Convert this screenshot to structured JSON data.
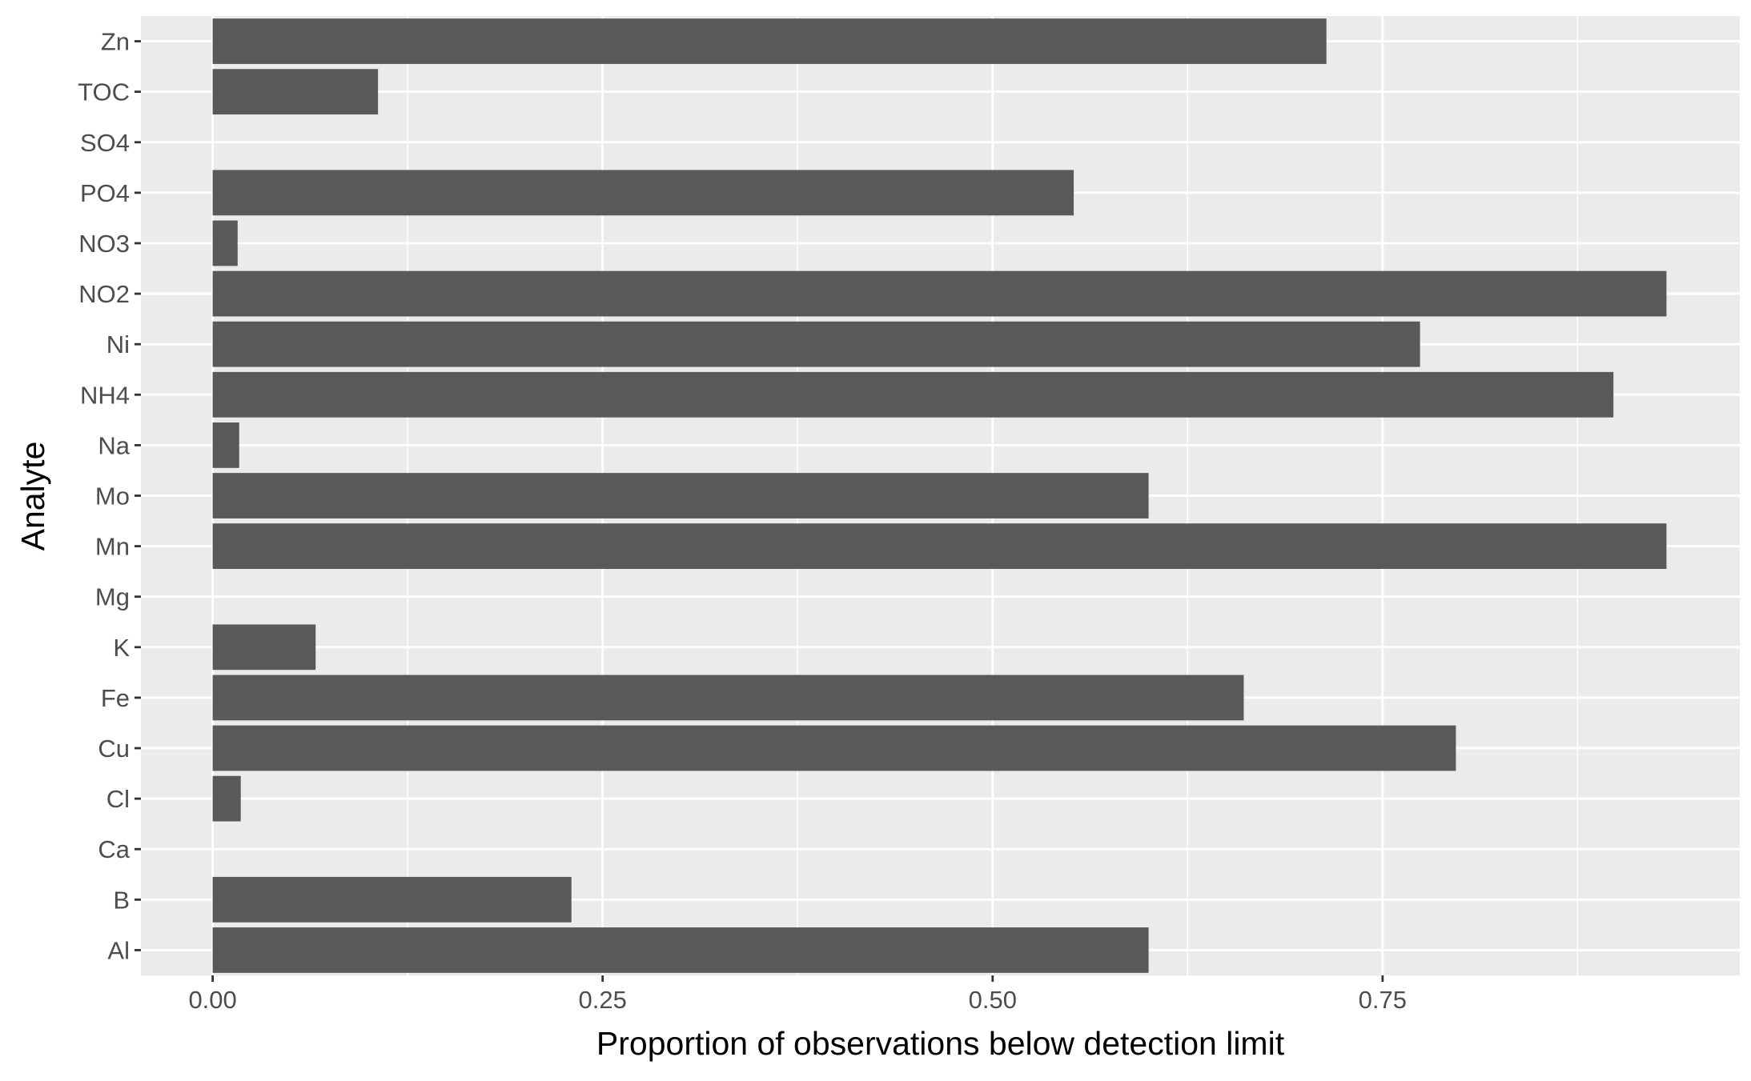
{
  "chart_data": {
    "type": "bar",
    "orientation": "horizontal",
    "title": "",
    "xlabel": "Proportion of observations below detection limit",
    "ylabel": "Analyte",
    "categories": [
      "Al",
      "B",
      "Ca",
      "Cl",
      "Cu",
      "Fe",
      "K",
      "Mg",
      "Mn",
      "Mo",
      "Na",
      "NH4",
      "Ni",
      "NO2",
      "NO3",
      "PO4",
      "SO4",
      "TOC",
      "Zn"
    ],
    "values": [
      0.6,
      0.23,
      0.0,
      0.018,
      0.797,
      0.661,
      0.066,
      0.0,
      0.932,
      0.6,
      0.017,
      0.898,
      0.774,
      0.932,
      0.016,
      0.552,
      0.0,
      0.106,
      0.714
    ],
    "xlim": [
      -0.046,
      0.979
    ],
    "xticks": [
      0.0,
      0.25,
      0.5,
      0.75
    ],
    "xtick_labels": [
      "0.00",
      "0.25",
      "0.50",
      "0.75"
    ],
    "xminor": [
      0.125,
      0.375,
      0.625,
      0.875
    ],
    "grid": true,
    "legend": "none",
    "colors": {
      "bar": "#595959",
      "panel": "#ebebeb",
      "grid": "#ffffff",
      "tick": "#333333",
      "tick_text": "#4d4d4d"
    }
  }
}
